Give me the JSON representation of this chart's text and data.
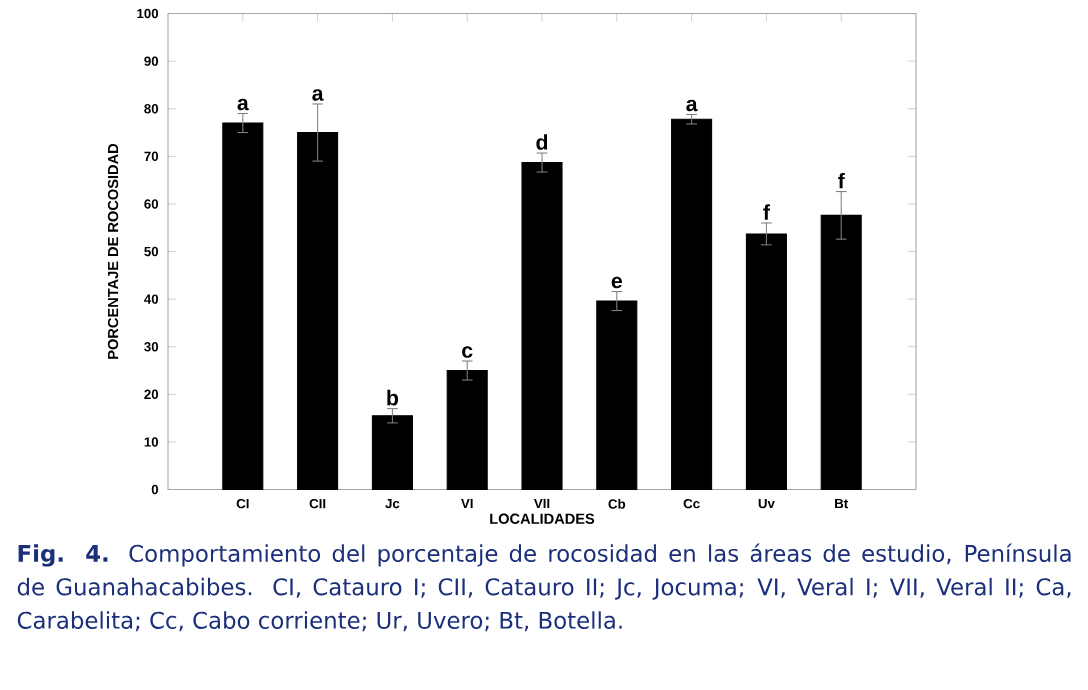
{
  "chart_data": {
    "type": "bar",
    "xlabel": "LOCALIDADES",
    "ylabel": "PORCENTAJE DE ROCOSIDAD",
    "categories": [
      "CI",
      "CII",
      "Jc",
      "VI",
      "VII",
      "Cb",
      "Cc",
      "Uv",
      "Bt"
    ],
    "values": [
      77,
      75,
      15.5,
      25,
      68.7,
      39.6,
      77.8,
      53.7,
      57.6
    ],
    "errors": [
      2,
      6,
      1.5,
      2,
      2,
      2,
      1,
      2.3,
      5
    ],
    "color": "#000000",
    "ylim": [
      0,
      100
    ],
    "yticks": [
      0,
      10,
      20,
      30,
      40,
      50,
      60,
      70,
      80,
      90,
      100
    ],
    "annotations": [
      {
        "text": "a",
        "x": "CI",
        "y": 77
      },
      {
        "text": "a",
        "x": "CII",
        "y": 75
      },
      {
        "text": "b",
        "x": "Jc",
        "y": 15.5
      },
      {
        "text": "c",
        "x": "VI",
        "y": 25
      },
      {
        "text": "d",
        "x": "VII",
        "y": 68.7
      },
      {
        "text": "e",
        "x": "Cb",
        "y": 39.6
      },
      {
        "text": "a",
        "x": "Cc",
        "y": 77.8
      },
      {
        "text": "f",
        "x": "Uv",
        "y": 53.7
      },
      {
        "text": "f",
        "x": "Bt",
        "y": 57.6
      },
      "**Fig. 4.** Comportamiento del porcentaje de rocosidad en las áreas de estudio, Península de Guanahacabibes. CI, Catauro I; CII, Catauro II; Jc, Jocuma; VI, Veral I; VII, Veral II; Ca, Carabelita; Cc, Cabo corriente; Ur, Uvero; Bt, Botella."
    ]
  }
}
